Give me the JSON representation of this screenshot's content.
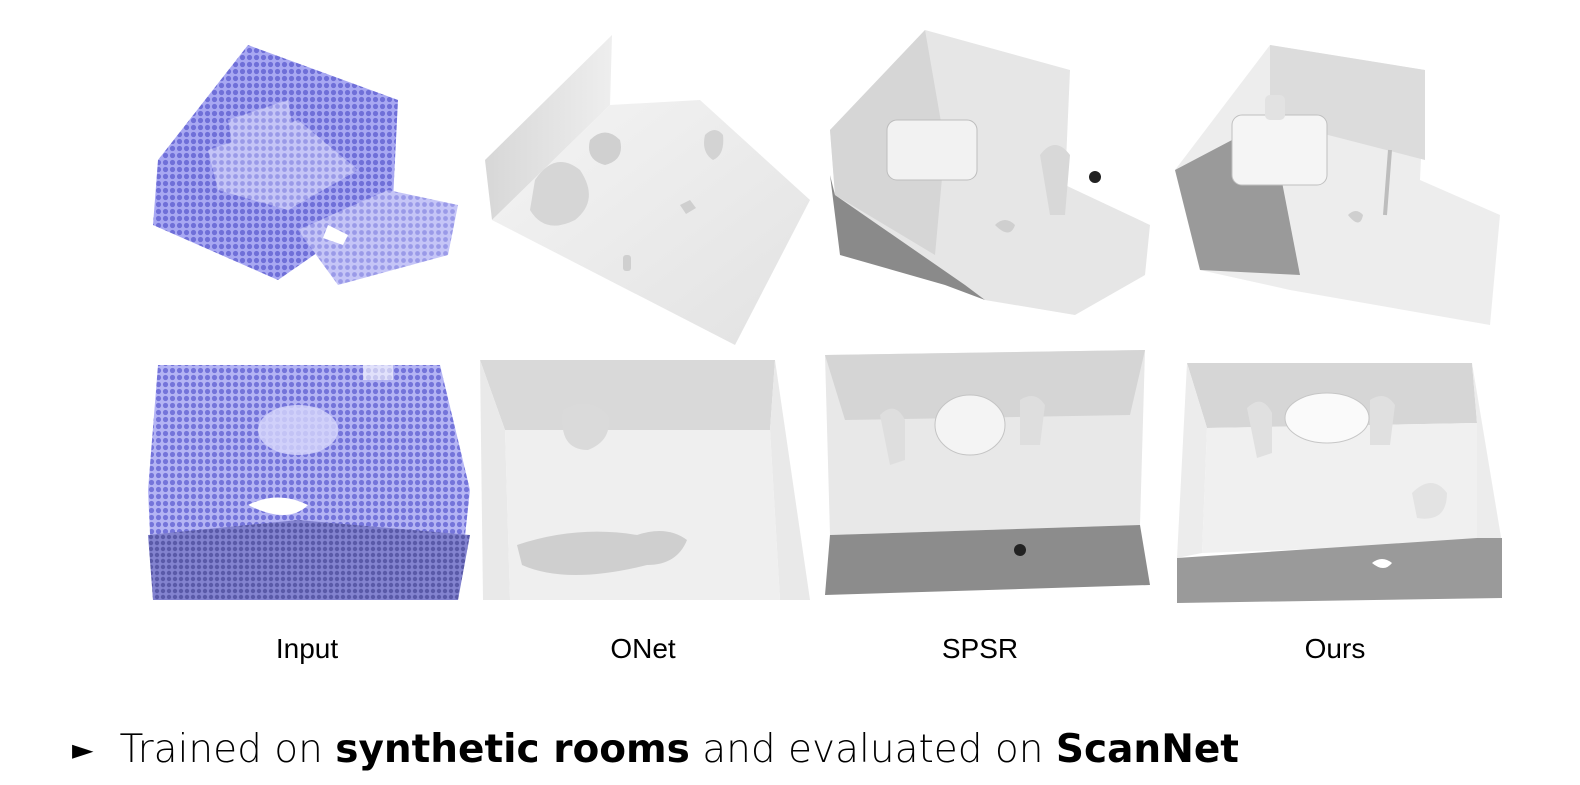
{
  "columns": [
    {
      "key": "input",
      "label": "Input"
    },
    {
      "key": "onet",
      "label": "ONet"
    },
    {
      "key": "spsr",
      "label": "SPSR"
    },
    {
      "key": "ours",
      "label": "Ours"
    }
  ],
  "caption": {
    "bullet_icon": "right-pointing-triangle",
    "parts": [
      {
        "text": "Trained on ",
        "bold": false
      },
      {
        "text": "synthetic rooms",
        "bold": true
      },
      {
        "text": " and evaluated on ",
        "bold": false
      },
      {
        "text": "ScanNet",
        "bold": true
      }
    ]
  },
  "colors": {
    "point_cloud": "#8f8fe8",
    "mesh_light": "#ececec",
    "mesh_mid": "#c9c9c9",
    "mesh_dark": "#7a7a7a"
  }
}
